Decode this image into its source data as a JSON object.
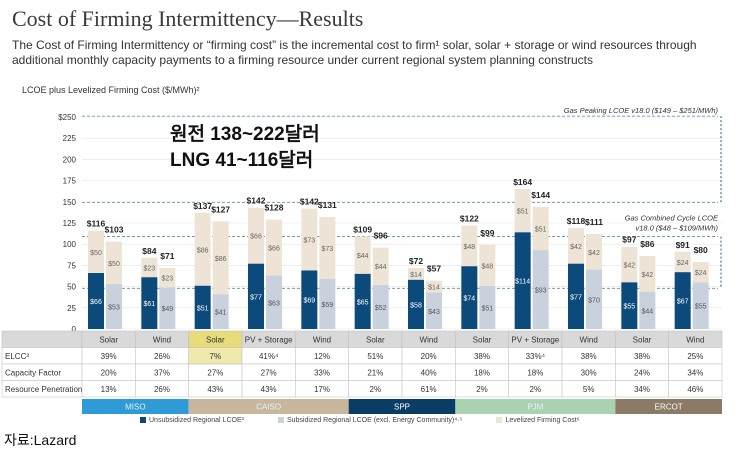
{
  "title": "Cost of Firming Intermittency—Results",
  "description": "The Cost of Firming Intermittency or “firming cost” is the incremental cost to firm¹ solar, solar + storage or wind resources through additional monthly capacity payments to a firming resource under current regional system planning constructs",
  "axis_title": "LCOE plus Levelized Firming Cost ($/MWh)²",
  "korean_overlay": [
    "원전 138~222달러",
    "LNG 41~116달러"
  ],
  "source": "자료:Lazard",
  "colors": {
    "unsubsidized": "#0b4a7a",
    "subsidized": "#c9d2dc",
    "firming": "#ede4d6",
    "MISO": "#2f9bd6",
    "CAISO": "#c8b79c",
    "SPP": "#0a3d66",
    "PJM": "#a8d2b0",
    "ERCOT": "#8a7a66"
  },
  "legend": [
    {
      "label": "Unsubsidized Regional LCOE³",
      "color": "#0b4a7a"
    },
    {
      "label": "Subsidized Regional LCOE (excl. Energy Community)⁴·⁵",
      "color": "#c9d2dc"
    },
    {
      "label": "Levelized Firming Cost⁶",
      "color": "#ede4d6"
    }
  ],
  "table_rows": [
    {
      "label": "ELCC³",
      "values": [
        "39%",
        "26%",
        "7%",
        "41%⁴",
        "12%",
        "51%",
        "20%",
        "38%",
        "33%⁴",
        "38%",
        "38%",
        "25%"
      ]
    },
    {
      "label": "Capacity Factor",
      "values": [
        "20%",
        "37%",
        "27%",
        "27%",
        "33%",
        "21%",
        "40%",
        "18%",
        "18%",
        "30%",
        "24%",
        "34%"
      ]
    },
    {
      "label": "Resource Penetration",
      "values": [
        "13%",
        "26%",
        "43%",
        "43%",
        "17%",
        "2%",
        "61%",
        "2%",
        "2%",
        "5%",
        "34%",
        "46%"
      ]
    }
  ],
  "chart_data": {
    "type": "bar",
    "ylabel": "LCOE plus Levelized Firming Cost ($/MWh)",
    "ylim": [
      0,
      250
    ],
    "yticks": [
      "0",
      "25",
      "50",
      "75",
      "100",
      "125",
      "150",
      "175",
      "200",
      "225",
      "$250"
    ],
    "categories": [
      "Solar",
      "Wind",
      "Solar",
      "PV + Storage",
      "Wind",
      "Solar",
      "Wind",
      "Solar",
      "PV + Storage",
      "Wind",
      "Solar",
      "Wind"
    ],
    "regions": [
      {
        "name": "MISO",
        "cats": [
          0,
          1
        ]
      },
      {
        "name": "CAISO",
        "cats": [
          2,
          3,
          4
        ]
      },
      {
        "name": "SPP",
        "cats": [
          5,
          6
        ]
      },
      {
        "name": "PJM",
        "cats": [
          7,
          8,
          9
        ]
      },
      {
        "name": "ERCOT",
        "cats": [
          10,
          11
        ]
      }
    ],
    "groups": [
      {
        "unsub": {
          "base": 66,
          "firm": 50,
          "total": "$116"
        },
        "sub": {
          "base": 53,
          "firm": 50,
          "total": "$103"
        }
      },
      {
        "unsub": {
          "base": 61,
          "firm": 23,
          "total": "$84"
        },
        "sub": {
          "base": 49,
          "firm": 23,
          "total": "$71"
        }
      },
      {
        "unsub": {
          "base": 51,
          "firm": 86,
          "total": "$137"
        },
        "sub": {
          "base": 41,
          "firm": 86,
          "total": "$127"
        }
      },
      {
        "unsub": {
          "base": 77,
          "firm": 66,
          "total": "$142"
        },
        "sub": {
          "base": 63,
          "firm": 66,
          "total": "$128"
        }
      },
      {
        "unsub": {
          "base": 69,
          "firm": 73,
          "total": "$142"
        },
        "sub": {
          "base": 59,
          "firm": 73,
          "total": "$131"
        }
      },
      {
        "unsub": {
          "base": 65,
          "firm": 44,
          "total": "$109"
        },
        "sub": {
          "base": 52,
          "firm": 44,
          "total": "$96"
        }
      },
      {
        "unsub": {
          "base": 58,
          "firm": 14,
          "total": "$72"
        },
        "sub": {
          "base": 43,
          "firm": 14,
          "total": "$57"
        }
      },
      {
        "unsub": {
          "base": 74,
          "firm": 48,
          "total": "$122"
        },
        "sub": {
          "base": 51,
          "firm": 48,
          "total": "$99"
        }
      },
      {
        "unsub": {
          "base": 114,
          "firm": 51,
          "total": "$164"
        },
        "sub": {
          "base": 93,
          "firm": 51,
          "total": "$144"
        }
      },
      {
        "unsub": {
          "base": 77,
          "firm": 42,
          "total": "$118"
        },
        "sub": {
          "base": 70,
          "firm": 42,
          "total": "$111"
        }
      },
      {
        "unsub": {
          "base": 55,
          "firm": 42,
          "total": "$97"
        },
        "sub": {
          "base": 44,
          "firm": 42,
          "total": "$86"
        }
      },
      {
        "unsub": {
          "base": 67,
          "firm": 24,
          "total": "$91"
        },
        "sub": {
          "base": 55,
          "firm": 24,
          "total": "$80"
        }
      }
    ],
    "references": [
      {
        "label": "Gas Peaking LCOE v18.0 ($149 – $251/MWh)",
        "range": [
          149,
          251
        ]
      },
      {
        "label_lines": [
          "Gas Combined Cycle LCOE",
          "v18.0 ($48 – $109/MWh)"
        ],
        "range": [
          48,
          109
        ]
      }
    ]
  }
}
